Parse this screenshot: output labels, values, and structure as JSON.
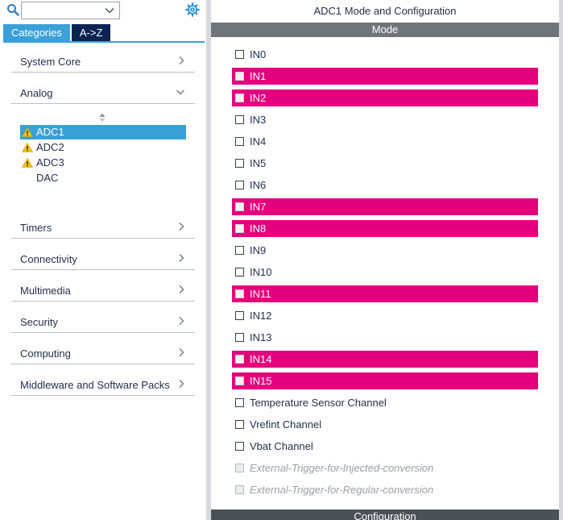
{
  "search": {
    "value": ""
  },
  "tabs": [
    {
      "label": "Categories",
      "active": true
    },
    {
      "label": "A->Z",
      "active": false
    }
  ],
  "categories": {
    "system_core": {
      "label": "System Core",
      "expanded": false
    },
    "analog": {
      "label": "Analog",
      "expanded": true
    },
    "timers": {
      "label": "Timers",
      "expanded": false
    },
    "connectivity": {
      "label": "Connectivity",
      "expanded": false
    },
    "multimedia": {
      "label": "Multimedia",
      "expanded": false
    },
    "security": {
      "label": "Security",
      "expanded": false
    },
    "computing": {
      "label": "Computing",
      "expanded": false
    },
    "middleware": {
      "label": "Middleware and Software Packs",
      "expanded": false
    }
  },
  "analog_items": [
    {
      "label": "ADC1",
      "warning": true,
      "selected": true
    },
    {
      "label": "ADC2",
      "warning": true,
      "selected": false
    },
    {
      "label": "ADC3",
      "warning": true,
      "selected": false
    },
    {
      "label": "DAC",
      "warning": false,
      "selected": false
    }
  ],
  "panel": {
    "title": "ADC1 Mode and Configuration",
    "mode_header": "Mode",
    "config_header": "Configuration"
  },
  "mode_items": [
    {
      "label": "IN0",
      "highlighted": false,
      "disabled": false
    },
    {
      "label": "IN1",
      "highlighted": true,
      "disabled": false
    },
    {
      "label": "IN2",
      "highlighted": true,
      "disabled": false
    },
    {
      "label": "IN3",
      "highlighted": false,
      "disabled": false
    },
    {
      "label": "IN4",
      "highlighted": false,
      "disabled": false
    },
    {
      "label": "IN5",
      "highlighted": false,
      "disabled": false
    },
    {
      "label": "IN6",
      "highlighted": false,
      "disabled": false
    },
    {
      "label": "IN7",
      "highlighted": true,
      "disabled": false
    },
    {
      "label": "IN8",
      "highlighted": true,
      "disabled": false
    },
    {
      "label": "IN9",
      "highlighted": false,
      "disabled": false
    },
    {
      "label": "IN10",
      "highlighted": false,
      "disabled": false
    },
    {
      "label": "IN11",
      "highlighted": true,
      "disabled": false
    },
    {
      "label": "IN12",
      "highlighted": false,
      "disabled": false
    },
    {
      "label": "IN13",
      "highlighted": false,
      "disabled": false
    },
    {
      "label": "IN14",
      "highlighted": true,
      "disabled": false
    },
    {
      "label": "IN15",
      "highlighted": true,
      "disabled": false
    },
    {
      "label": "Temperature Sensor Channel",
      "highlighted": false,
      "disabled": false
    },
    {
      "label": "Vrefint Channel",
      "highlighted": false,
      "disabled": false
    },
    {
      "label": "Vbat Channel",
      "highlighted": false,
      "disabled": false
    },
    {
      "label": "External-Trigger-for-Injected-conversion",
      "highlighted": false,
      "disabled": true
    },
    {
      "label": "External-Trigger-for-Regular-conversion",
      "highlighted": false,
      "disabled": true
    }
  ],
  "colors": {
    "accent": "#3aa0d8",
    "navy": "#0b2452",
    "highlight": "#e4007c",
    "warning": "#f5c400"
  },
  "icons": {
    "search": "search-icon",
    "gear": "gear-icon",
    "dropdown": "chevron-down-icon",
    "collapsed": "chevron-right-icon",
    "expanded": "chevron-down-icon",
    "warning": "warning-icon",
    "sort": "sort-icon"
  }
}
